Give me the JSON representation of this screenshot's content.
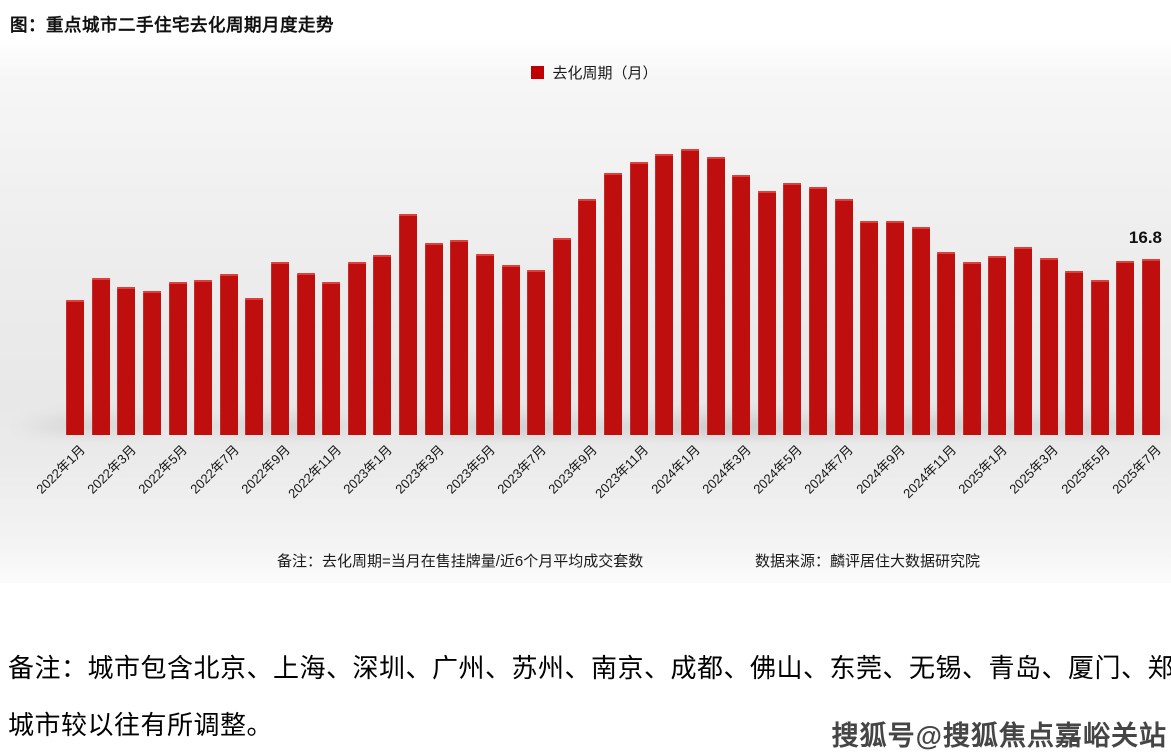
{
  "title": "图：重点城市二手住宅去化周期月度走势",
  "legend": {
    "label": "去化周期（月）",
    "swatch_color": "#c00000"
  },
  "annotations": {
    "last_value_label": "16.8"
  },
  "chart_footer": {
    "note": "备注：去化周期=当月在售挂牌量/近6个月平均成交套数",
    "source": "数据来源：麟评居住大数据研究院"
  },
  "bottom_note": {
    "line1": "备注：城市包含北京、上海、深圳、广州、苏州、南京、成都、佛山、东莞、无锡、青岛、厦门、郑州，",
    "line2": "城市较以往有所调整。"
  },
  "watermark": "搜狐号@搜狐焦点嘉峪关站",
  "chart_data": {
    "type": "bar",
    "title": "重点城市二手住宅去化周期月度走势",
    "series_name": "去化周期（月）",
    "bar_color": "#bf0e0e",
    "xlabel": "",
    "ylabel": "去化周期（月）",
    "ylim": [
      0,
      30
    ],
    "grid": false,
    "legend_position": "top",
    "x_tick_every": 2,
    "categories": [
      "2022年1月",
      "2022年2月",
      "2022年3月",
      "2022年4月",
      "2022年5月",
      "2022年6月",
      "2022年7月",
      "2022年8月",
      "2022年9月",
      "2022年10月",
      "2022年11月",
      "2022年12月",
      "2023年1月",
      "2023年2月",
      "2023年3月",
      "2023年4月",
      "2023年5月",
      "2023年6月",
      "2023年7月",
      "2023年8月",
      "2023年9月",
      "2023年10月",
      "2023年11月",
      "2023年12月",
      "2024年1月",
      "2024年2月",
      "2024年3月",
      "2024年4月",
      "2024年5月",
      "2024年6月",
      "2024年7月",
      "2024年8月",
      "2024年9月",
      "2024年10月",
      "2024年11月",
      "2024年12月",
      "2025年1月",
      "2025年2月",
      "2025年3月",
      "2025年4月",
      "2025年5月",
      "2025年6月",
      "2025年7月"
    ],
    "values": [
      12.9,
      15.0,
      14.2,
      13.8,
      14.6,
      14.8,
      15.4,
      13.1,
      16.5,
      15.5,
      14.6,
      16.5,
      17.2,
      21.1,
      18.4,
      18.6,
      17.3,
      16.3,
      15.8,
      18.8,
      22.6,
      25.1,
      26.1,
      26.9,
      27.3,
      26.6,
      24.9,
      23.3,
      24.1,
      23.7,
      22.6,
      20.5,
      20.5,
      19.9,
      17.5,
      16.5,
      17.1,
      18.0,
      16.9,
      15.7,
      14.8,
      16.6,
      16.8
    ]
  }
}
